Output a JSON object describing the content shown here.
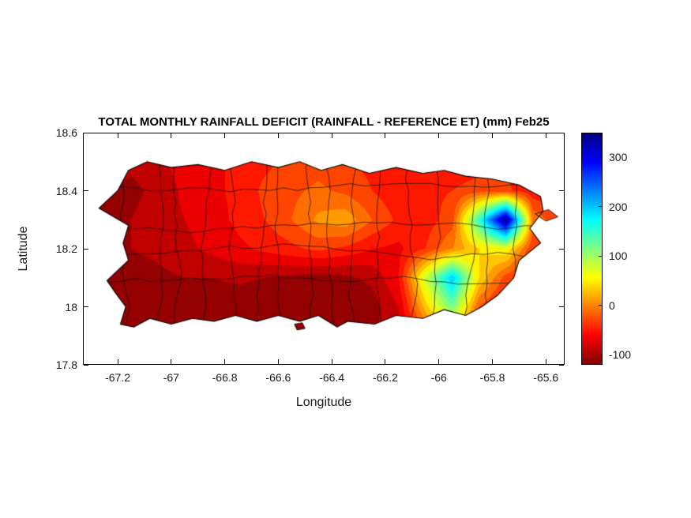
{
  "figure": {
    "title": "TOTAL MONTHLY RAINFALL DEFICIT (RAINFALL - REFERENCE ET) (mm) Feb25",
    "xlabel": "Longitude",
    "ylabel": "Latitude"
  },
  "axes": {
    "xlim": [
      -67.33,
      -65.53
    ],
    "ylim": [
      17.8,
      18.6
    ],
    "x_tick_values": [
      -67.2,
      -67,
      -66.8,
      -66.6,
      -66.4,
      -66.2,
      -66,
      -65.8,
      -65.6
    ],
    "x_tick_labels": [
      "-67.2",
      "-67",
      "-66.8",
      "-66.6",
      "-66.4",
      "-66.2",
      "-66",
      "-65.8",
      "-65.6"
    ],
    "y_tick_values": [
      17.8,
      18,
      18.2,
      18.4,
      18.6
    ],
    "y_tick_labels": [
      "17.8",
      "18",
      "18.2",
      "18.4",
      "18.6"
    ]
  },
  "colorbar": {
    "min": -120,
    "max": 350,
    "tick_values": [
      300,
      200,
      100,
      0,
      -100
    ],
    "tick_labels": [
      "300",
      "200",
      "100",
      "0",
      "-100"
    ],
    "colormap": "jet-reversed"
  },
  "chart_data": {
    "type": "heatmap",
    "title": "TOTAL MONTHLY RAINFALL DEFICIT (RAINFALL - REFERENCE ET) (mm) Feb25",
    "xlabel": "Longitude",
    "ylabel": "Latitude",
    "units": "mm",
    "month_label": "Feb25",
    "xlim": [
      -67.33,
      -65.53
    ],
    "ylim": [
      17.8,
      18.6
    ],
    "caxis": [
      -120,
      350
    ],
    "contour_step_mm": 20,
    "colormap": "jet reversed (high values blue, low values dark red)",
    "colorbar_ticks": [
      300,
      200,
      100,
      0,
      -100
    ],
    "lon": [
      -67.25,
      -67.15,
      -67.05,
      -66.95,
      -66.85,
      -66.75,
      -66.65,
      -66.55,
      -66.45,
      -66.35,
      -66.25,
      -66.15,
      -66.05,
      -65.95,
      -65.85,
      -65.75,
      -65.65,
      -65.55
    ],
    "lat": [
      17.92,
      18.0,
      18.1,
      18.2,
      18.3,
      18.4,
      18.5
    ],
    "values_mm": [
      [
        -100,
        -105,
        -110,
        -115,
        -115,
        -110,
        -115,
        -115,
        -110,
        -115,
        -105,
        -85,
        -20,
        40,
        -40,
        -65,
        -70,
        -75
      ],
      [
        -105,
        -110,
        -115,
        -120,
        -120,
        -115,
        -120,
        -120,
        -115,
        -120,
        -110,
        -80,
        30,
        120,
        -20,
        -60,
        -70,
        -75
      ],
      [
        -110,
        -110,
        -105,
        -100,
        -100,
        -95,
        -100,
        -105,
        -110,
        -105,
        -95,
        -60,
        80,
        200,
        40,
        -30,
        -60,
        -70
      ],
      [
        -105,
        -100,
        -95,
        -85,
        -75,
        -65,
        -55,
        -45,
        -35,
        -45,
        -60,
        -65,
        -40,
        0,
        40,
        60,
        -40,
        -60
      ],
      [
        -110,
        -100,
        -90,
        -80,
        -70,
        -55,
        -40,
        -20,
        5,
        15,
        -20,
        -45,
        -50,
        -30,
        150,
        350,
        0,
        -40
      ],
      [
        -100,
        -105,
        -95,
        -75,
        -65,
        -55,
        -35,
        -25,
        -15,
        -25,
        -40,
        -55,
        -45,
        -40,
        -30,
        -35,
        -55,
        -60
      ],
      [
        -90,
        -95,
        -85,
        -70,
        -65,
        -55,
        -45,
        -35,
        -30,
        -40,
        -45,
        -55,
        -50,
        -55,
        -50,
        -45,
        -50,
        -60
      ]
    ],
    "features": [
      {
        "name": "surplus-maximum-blue-spot",
        "lon": -65.78,
        "lat": 18.29,
        "value_mm": 350
      },
      {
        "name": "southeast-surplus-cyan-area",
        "lon": -65.97,
        "lat": 18.07,
        "value_mm": 200
      },
      {
        "name": "south-central-deficit-belt",
        "lon": -66.6,
        "lat": 18.02,
        "value_mm": -120
      }
    ],
    "island_outline_lonlat": [
      [
        -67.16,
        18.47
      ],
      [
        -67.09,
        18.5
      ],
      [
        -67.0,
        18.48
      ],
      [
        -66.9,
        18.49
      ],
      [
        -66.8,
        18.47
      ],
      [
        -66.7,
        18.5
      ],
      [
        -66.6,
        18.48
      ],
      [
        -66.52,
        18.5
      ],
      [
        -66.44,
        18.47
      ],
      [
        -66.36,
        18.49
      ],
      [
        -66.26,
        18.46
      ],
      [
        -66.16,
        18.48
      ],
      [
        -66.06,
        18.46
      ],
      [
        -65.98,
        18.47
      ],
      [
        -65.9,
        18.45
      ],
      [
        -65.8,
        18.44
      ],
      [
        -65.7,
        18.42
      ],
      [
        -65.62,
        18.38
      ],
      [
        -65.61,
        18.33
      ],
      [
        -65.66,
        18.27
      ],
      [
        -65.62,
        18.22
      ],
      [
        -65.7,
        18.16
      ],
      [
        -65.72,
        18.1
      ],
      [
        -65.78,
        18.04
      ],
      [
        -65.84,
        18.0
      ],
      [
        -65.9,
        17.97
      ],
      [
        -65.98,
        17.99
      ],
      [
        -66.06,
        17.96
      ],
      [
        -66.16,
        17.97
      ],
      [
        -66.24,
        17.94
      ],
      [
        -66.34,
        17.95
      ],
      [
        -66.38,
        17.93
      ],
      [
        -66.45,
        17.97
      ],
      [
        -66.52,
        17.95
      ],
      [
        -66.6,
        17.97
      ],
      [
        -66.68,
        17.95
      ],
      [
        -66.76,
        17.97
      ],
      [
        -66.84,
        17.95
      ],
      [
        -66.92,
        17.96
      ],
      [
        -67.0,
        17.94
      ],
      [
        -67.08,
        17.96
      ],
      [
        -67.14,
        17.93
      ],
      [
        -67.19,
        17.94
      ],
      [
        -67.17,
        18.0
      ],
      [
        -67.21,
        18.05
      ],
      [
        -67.24,
        18.09
      ],
      [
        -67.16,
        18.16
      ],
      [
        -67.18,
        18.22
      ],
      [
        -67.16,
        18.28
      ],
      [
        -67.27,
        18.34
      ],
      [
        -67.2,
        18.4
      ]
    ],
    "islets_lonlat": [
      [
        [
          -65.64,
          18.32
        ],
        [
          -65.59,
          18.335
        ],
        [
          -65.555,
          18.31
        ],
        [
          -65.6,
          18.295
        ]
      ],
      [
        [
          -66.54,
          17.94
        ],
        [
          -66.51,
          17.945
        ],
        [
          -66.5,
          17.925
        ],
        [
          -66.53,
          17.92
        ]
      ]
    ],
    "boundary_overlay": true
  }
}
